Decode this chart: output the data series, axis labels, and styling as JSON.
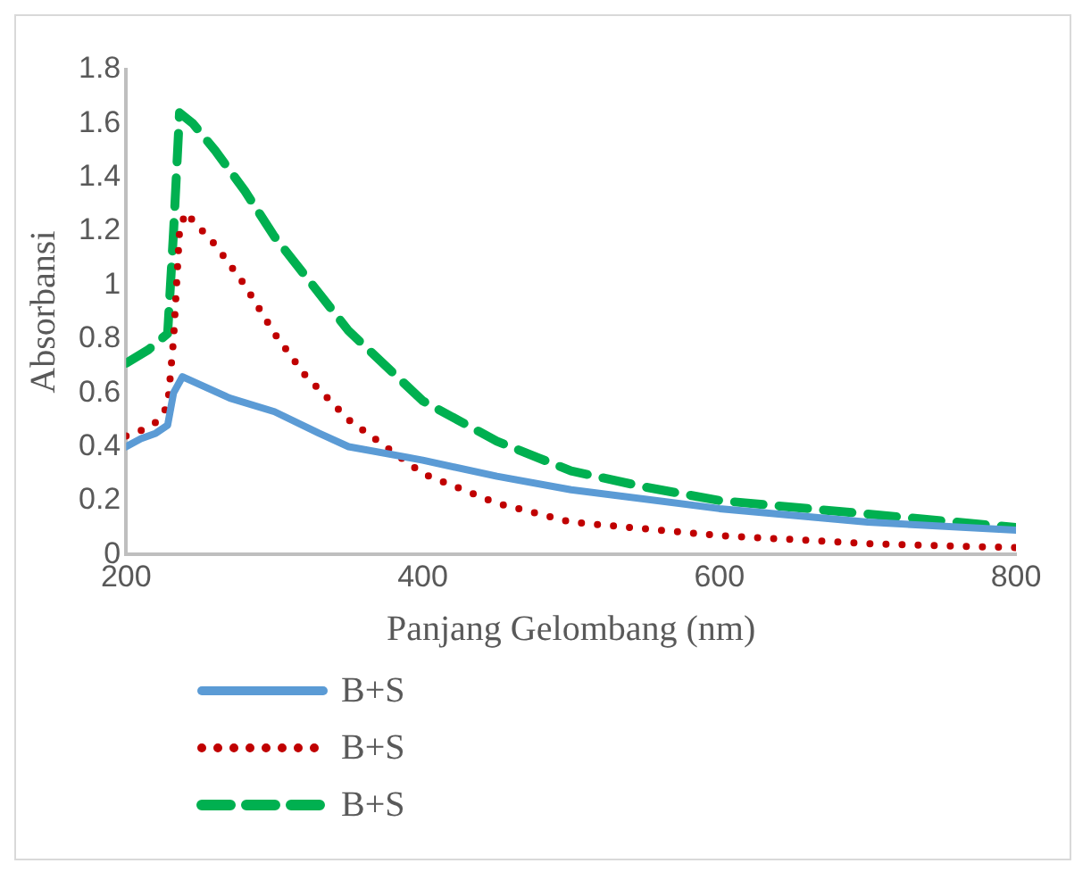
{
  "chart_data": {
    "type": "line",
    "xlabel": "Panjang Gelombang (nm)",
    "ylabel": "Absorbansi",
    "xlim": [
      200,
      800
    ],
    "xticks": [
      200,
      400,
      600,
      800
    ],
    "ylim": [
      0,
      1.8
    ],
    "yticks": [
      0,
      0.2,
      0.4,
      0.6,
      0.8,
      1,
      1.2,
      1.4,
      1.6,
      1.8
    ],
    "grid": false,
    "legend": "bottom",
    "marker": "none",
    "series": [
      {
        "name": "B+S",
        "color": "#5b9bd5",
        "line_style": "solid",
        "x": [
          200,
          210,
          220,
          228,
          232,
          238,
          250,
          270,
          300,
          330,
          350,
          400,
          450,
          500,
          600,
          700,
          800
        ],
        "values": [
          0.4,
          0.43,
          0.45,
          0.48,
          0.6,
          0.66,
          0.63,
          0.58,
          0.53,
          0.45,
          0.4,
          0.35,
          0.29,
          0.24,
          0.17,
          0.12,
          0.09
        ]
      },
      {
        "name": "B+S",
        "color": "#c00000",
        "line_style": "dotted",
        "x": [
          200,
          210,
          220,
          228,
          232,
          236,
          240,
          260,
          280,
          300,
          320,
          350,
          380,
          400,
          450,
          500,
          600,
          700,
          800
        ],
        "values": [
          0.44,
          0.46,
          0.49,
          0.55,
          0.8,
          1.2,
          1.27,
          1.15,
          1.0,
          0.82,
          0.67,
          0.5,
          0.38,
          0.3,
          0.19,
          0.12,
          0.07,
          0.04,
          0.025
        ]
      },
      {
        "name": "B+S",
        "color": "#00b050",
        "line_style": "dashed",
        "x": [
          200,
          215,
          228,
          232,
          236,
          245,
          260,
          280,
          300,
          350,
          400,
          450,
          500,
          550,
          600,
          700,
          800
        ],
        "values": [
          0.71,
          0.76,
          0.82,
          1.2,
          1.64,
          1.6,
          1.5,
          1.35,
          1.18,
          0.83,
          0.57,
          0.42,
          0.31,
          0.25,
          0.2,
          0.15,
          0.1
        ]
      }
    ]
  }
}
